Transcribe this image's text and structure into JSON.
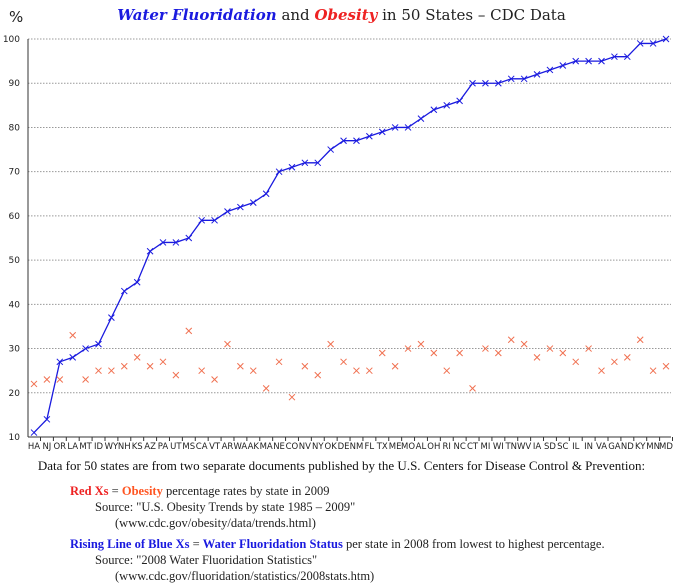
{
  "chart_data": {
    "type": "line",
    "title_parts": {
      "blue": "Water Fluoridation",
      "mid": "and",
      "red": "Obesity",
      "rest": "in 50 States – CDC Data"
    },
    "ylabel": "%",
    "ylim": [
      10,
      100
    ],
    "yticks": [
      10,
      20,
      30,
      40,
      50,
      60,
      70,
      80,
      90,
      100
    ],
    "grid": true,
    "categories": [
      "HA",
      "NJ",
      "OR",
      "LA",
      "MT",
      "ID",
      "WY",
      "NH",
      "KS",
      "AZ",
      "PA",
      "UT",
      "MS",
      "CA",
      "VT",
      "AR",
      "WA",
      "AK",
      "MA",
      "NE",
      "CO",
      "NV",
      "NY",
      "OK",
      "DE",
      "NM",
      "FL",
      "TX",
      "ME",
      "MO",
      "AL",
      "OH",
      "RI",
      "NC",
      "CT",
      "MI",
      "WI",
      "TN",
      "WV",
      "IA",
      "SD",
      "SC",
      "IL",
      "IN",
      "VA",
      "GA",
      "ND",
      "KY",
      "MN",
      "MD"
    ],
    "series": [
      {
        "name": "Water Fluoridation",
        "style": "line+x",
        "color": "#1a1adf",
        "values": [
          11,
          14,
          27,
          28,
          30,
          31,
          37,
          43,
          45,
          52,
          54,
          54,
          55,
          59,
          59,
          61,
          62,
          63,
          65,
          70,
          71,
          72,
          72,
          75,
          77,
          77,
          78,
          79,
          80,
          80,
          82,
          84,
          85,
          86,
          90,
          90,
          90,
          91,
          91,
          92,
          93,
          94,
          95,
          95,
          95,
          96,
          96,
          99,
          99,
          100
        ]
      },
      {
        "name": "Obesity",
        "style": "x",
        "color": "#f07050",
        "values": [
          22,
          23,
          23,
          33,
          23,
          25,
          25,
          26,
          28,
          26,
          27,
          24,
          34,
          25,
          23,
          31,
          26,
          25,
          21,
          27,
          19,
          26,
          24,
          31,
          27,
          25,
          25,
          29,
          26,
          30,
          31,
          29,
          25,
          29,
          21,
          30,
          29,
          32,
          31,
          28,
          30,
          29,
          27,
          30,
          25,
          27,
          28,
          32,
          25,
          26
        ]
      }
    ]
  },
  "footer": {
    "intro": "Data for 50 states are from two separate documents published by the U.S. Centers for Disease Control & Prevention:",
    "obesity": {
      "key": "Red Xs",
      "eq": " = ",
      "name": "Obesity",
      "desc": " percentage rates by state in 2009",
      "source": "Source: \"U.S. Obesity Trends by state 1985 – 2009\"",
      "url": "(www.cdc.gov/obesity/data/trends.html)"
    },
    "fluoride": {
      "key": "Rising Line of Blue Xs",
      "eq": " = ",
      "name": "Water Fluoridation Status",
      "desc": " per state in 2008 from lowest to highest percentage.",
      "source": "Source: \"2008 Water Fluoridation Statistics\"",
      "url": "(www.cdc.gov/fluoridation/statistics/2008stats.htm)"
    }
  }
}
